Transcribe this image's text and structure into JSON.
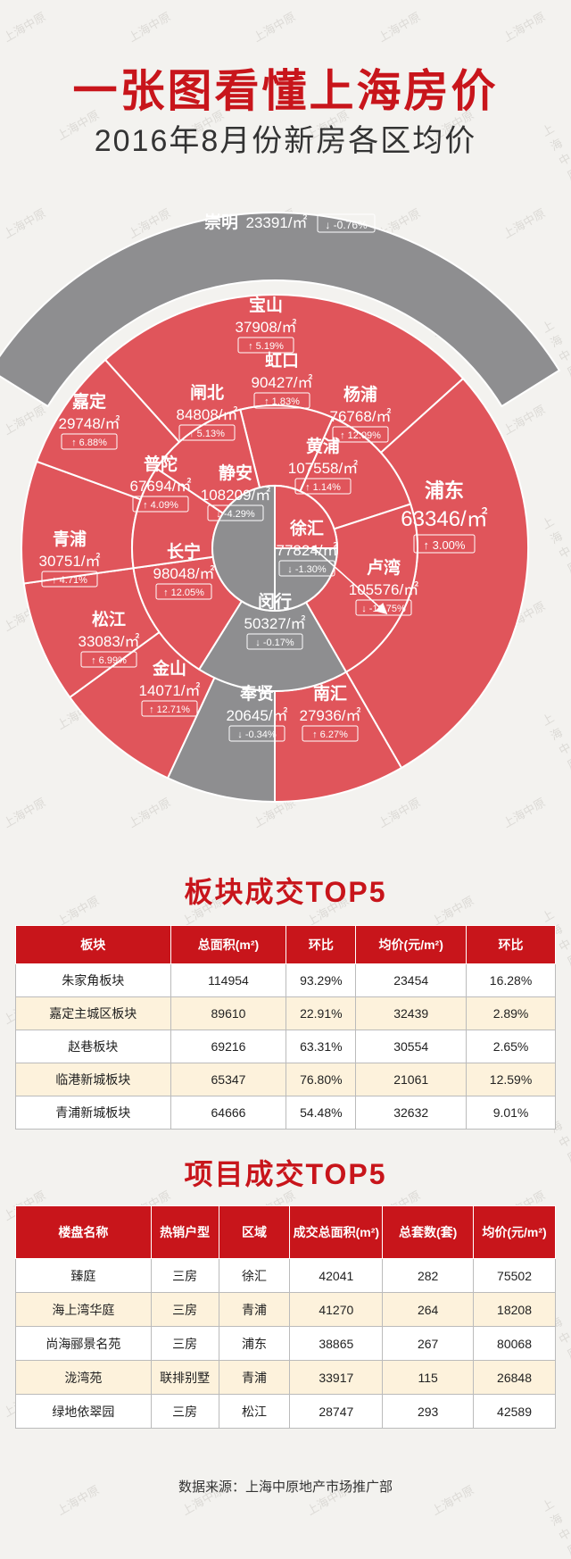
{
  "title": "一张图看懂上海房价",
  "subtitle": "2016年8月份新房各区均价",
  "watermark": "上海中原",
  "colors": {
    "red": "#e0555b",
    "gray": "#8e8e90",
    "accent": "#c8151b"
  },
  "chart_data": {
    "type": "sunburst",
    "unit": "/㎡",
    "regions": [
      {
        "name": "崇明",
        "price": "23391",
        "change": "-0.76%",
        "dir": "down",
        "color": "gray"
      },
      {
        "name": "宝山",
        "price": "37908",
        "change": "5.19%",
        "dir": "up",
        "color": "red"
      },
      {
        "name": "嘉定",
        "price": "29748",
        "change": "6.88%",
        "dir": "up",
        "color": "red"
      },
      {
        "name": "青浦",
        "price": "30751",
        "change": "4.71%",
        "dir": "up",
        "color": "red"
      },
      {
        "name": "松江",
        "price": "33083",
        "change": "6.99%",
        "dir": "up",
        "color": "red"
      },
      {
        "name": "金山",
        "price": "14071",
        "change": "12.71%",
        "dir": "up",
        "color": "red"
      },
      {
        "name": "奉贤",
        "price": "20645",
        "change": "-0.34%",
        "dir": "down",
        "color": "gray"
      },
      {
        "name": "南汇",
        "price": "27936",
        "change": "6.27%",
        "dir": "up",
        "color": "red"
      },
      {
        "name": "浦东",
        "price": "63346",
        "change": "3.00%",
        "dir": "up",
        "color": "red"
      },
      {
        "name": "闸北",
        "price": "84808",
        "change": "5.13%",
        "dir": "up",
        "color": "red"
      },
      {
        "name": "虹口",
        "price": "90427",
        "change": "1.83%",
        "dir": "up",
        "color": "red"
      },
      {
        "name": "杨浦",
        "price": "76768",
        "change": "12.09%",
        "dir": "up",
        "color": "red"
      },
      {
        "name": "普陀",
        "price": "67694",
        "change": "4.09%",
        "dir": "up",
        "color": "red"
      },
      {
        "name": "长宁",
        "price": "98048",
        "change": "12.05%",
        "dir": "up",
        "color": "red"
      },
      {
        "name": "闵行",
        "price": "50327",
        "change": "-0.17%",
        "dir": "down",
        "color": "gray"
      },
      {
        "name": "卢湾",
        "price": "105576",
        "change": "-10.75%",
        "dir": "down",
        "color": "red"
      },
      {
        "name": "黄浦",
        "price": "107558",
        "change": "1.14%",
        "dir": "up",
        "color": "red"
      },
      {
        "name": "静安",
        "price": "108209",
        "change": "-4.29%",
        "dir": "down",
        "color": "gray"
      },
      {
        "name": "徐汇",
        "price": "77824",
        "change": "-1.30%",
        "dir": "down",
        "color": "gray"
      }
    ]
  },
  "section1": {
    "title": "板块成交TOP5",
    "headers": [
      "板块",
      "总面积(m²)",
      "环比",
      "均价(元/m²)",
      "环比"
    ],
    "rows": [
      [
        "朱家角板块",
        "114954",
        "93.29%",
        "23454",
        "16.28%"
      ],
      [
        "嘉定主城区板块",
        "89610",
        "22.91%",
        "32439",
        "2.89%"
      ],
      [
        "赵巷板块",
        "69216",
        "63.31%",
        "30554",
        "2.65%"
      ],
      [
        "临港新城板块",
        "65347",
        "76.80%",
        "21061",
        "12.59%"
      ],
      [
        "青浦新城板块",
        "64666",
        "54.48%",
        "32632",
        "9.01%"
      ]
    ]
  },
  "section2": {
    "title": "项目成交TOP5",
    "headers": [
      "楼盘名称",
      "热销户型",
      "区域",
      "成交总面积(m²)",
      "总套数(套)",
      "均价(元/m²)"
    ],
    "rows": [
      [
        "臻庭",
        "三房",
        "徐汇",
        "42041",
        "282",
        "75502"
      ],
      [
        "海上湾华庭",
        "三房",
        "青浦",
        "41270",
        "264",
        "18208"
      ],
      [
        "尚海郦景名苑",
        "三房",
        "浦东",
        "38865",
        "267",
        "80068"
      ],
      [
        "泷湾苑",
        "联排别墅",
        "青浦",
        "33917",
        "115",
        "26848"
      ],
      [
        "绿地依翠园",
        "三房",
        "松江",
        "28747",
        "293",
        "42589"
      ]
    ]
  },
  "source": "数据来源：上海中原地产市场推广部"
}
